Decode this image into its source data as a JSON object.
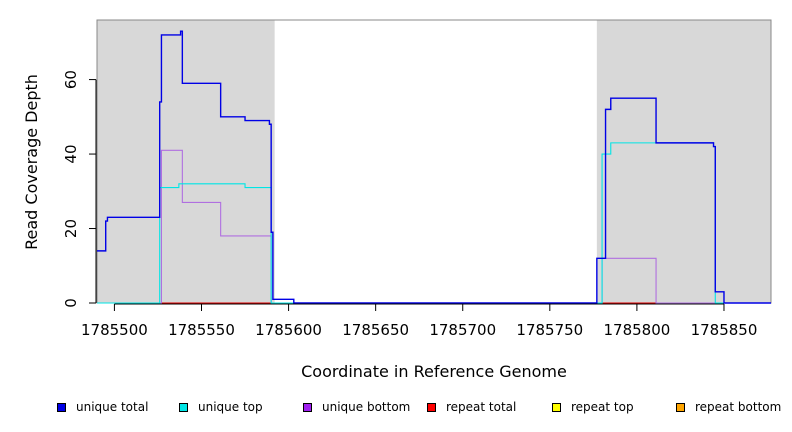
{
  "chart_data": {
    "type": "line",
    "xlabel": "Coordinate in Reference Genome",
    "ylabel": "Read Coverage Depth",
    "xlim": [
      1785490,
      1785877
    ],
    "ylim": [
      0,
      76
    ],
    "x_ticks": [
      1785500,
      1785550,
      1785600,
      1785650,
      1785700,
      1785750,
      1785800,
      1785850
    ],
    "y_ticks": [
      0,
      20,
      40,
      60
    ],
    "shaded_regions": [
      [
        1785490,
        1785592
      ],
      [
        1785777,
        1785877
      ]
    ],
    "shade_color": "#d8d8d8",
    "series": [
      {
        "name": "unique total",
        "color": "#0000e6",
        "points": [
          [
            1785490,
            14
          ],
          [
            1785495,
            14
          ],
          [
            1785495,
            22
          ],
          [
            1785496,
            22
          ],
          [
            1785496,
            23
          ],
          [
            1785526,
            23
          ],
          [
            1785526,
            54
          ],
          [
            1785527,
            54
          ],
          [
            1785527,
            72
          ],
          [
            1785538,
            72
          ],
          [
            1785538,
            73
          ],
          [
            1785539,
            73
          ],
          [
            1785539,
            59
          ],
          [
            1785561,
            59
          ],
          [
            1785561,
            50
          ],
          [
            1785575,
            50
          ],
          [
            1785575,
            49
          ],
          [
            1785589,
            49
          ],
          [
            1785589,
            48
          ],
          [
            1785590,
            48
          ],
          [
            1785590,
            19
          ],
          [
            1785591,
            19
          ],
          [
            1785591,
            1
          ],
          [
            1785603,
            1
          ],
          [
            1785603,
            0
          ],
          [
            1785777,
            0
          ],
          [
            1785777,
            12
          ],
          [
            1785782,
            12
          ],
          [
            1785782,
            52
          ],
          [
            1785785,
            52
          ],
          [
            1785785,
            55
          ],
          [
            1785811,
            55
          ],
          [
            1785811,
            43
          ],
          [
            1785844,
            43
          ],
          [
            1785844,
            42
          ],
          [
            1785845,
            42
          ],
          [
            1785845,
            3
          ],
          [
            1785850,
            3
          ],
          [
            1785850,
            0
          ],
          [
            1785877,
            0
          ]
        ]
      },
      {
        "name": "unique top",
        "color": "#00e5e5",
        "points": [
          [
            1785490,
            0
          ],
          [
            1785526,
            0
          ],
          [
            1785526,
            31
          ],
          [
            1785537,
            31
          ],
          [
            1785537,
            32
          ],
          [
            1785575,
            32
          ],
          [
            1785575,
            31
          ],
          [
            1785590,
            31
          ],
          [
            1785590,
            0
          ],
          [
            1785780,
            0
          ],
          [
            1785780,
            40
          ],
          [
            1785785,
            40
          ],
          [
            1785785,
            43
          ],
          [
            1785844,
            43
          ],
          [
            1785844,
            42
          ],
          [
            1785845,
            42
          ],
          [
            1785845,
            0
          ],
          [
            1785877,
            0
          ]
        ]
      },
      {
        "name": "unique bottom",
        "color": "#b06fe0",
        "points": [
          [
            1785490,
            0
          ],
          [
            1785527,
            0
          ],
          [
            1785527,
            41
          ],
          [
            1785539,
            41
          ],
          [
            1785539,
            27
          ],
          [
            1785561,
            27
          ],
          [
            1785561,
            18
          ],
          [
            1785590,
            18
          ],
          [
            1785590,
            0
          ],
          [
            1785780,
            0
          ],
          [
            1785780,
            12
          ],
          [
            1785811,
            12
          ],
          [
            1785811,
            0
          ],
          [
            1785877,
            0
          ]
        ]
      },
      {
        "name": "repeat total",
        "color": "#e00000",
        "points": [
          [
            1785490,
            0
          ],
          [
            1785877,
            0
          ]
        ]
      },
      {
        "name": "repeat top",
        "color": "#e5e500",
        "points": [
          [
            1785490,
            0
          ],
          [
            1785877,
            0
          ]
        ]
      },
      {
        "name": "repeat bottom",
        "color": "#f0a000",
        "points": [
          [
            1785490,
            0
          ],
          [
            1785877,
            0
          ]
        ]
      }
    ],
    "legend": {
      "placement": "bottom",
      "items": [
        {
          "label": "unique total",
          "color": "#0000e6"
        },
        {
          "label": "unique top",
          "color": "#00e5e5"
        },
        {
          "label": "unique bottom",
          "color": "#a020f0"
        },
        {
          "label": "repeat total",
          "color": "#ff0000"
        },
        {
          "label": "repeat top",
          "color": "#ffff00"
        },
        {
          "label": "repeat bottom",
          "color": "#ffa500"
        }
      ]
    }
  }
}
